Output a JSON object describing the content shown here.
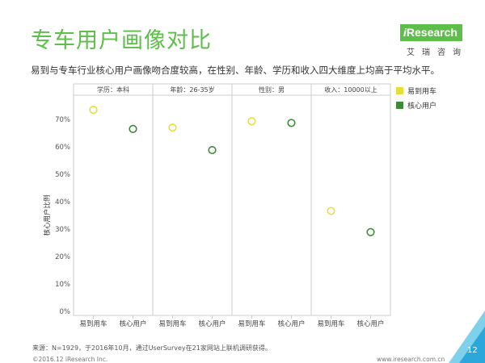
{
  "header": {
    "title": "专车用户画像对比",
    "subtitle": "易到与专车行业核心用户画像吻合度较高，在性别、年龄、学历和收入四大维度上均高于平均水平。"
  },
  "logo": {
    "prefix": "i",
    "name": "Research",
    "cn": "艾瑞咨询",
    "color": "#5dbe4a"
  },
  "chart_data": {
    "type": "scatter",
    "ylabel": "核心用户比例",
    "ylim": [
      0,
      70
    ],
    "yticks": [
      "0%",
      "10%",
      "20%",
      "30%",
      "40%",
      "50%",
      "60%",
      "70%"
    ],
    "ytick_values": [
      0,
      10,
      20,
      30,
      40,
      50,
      60,
      70
    ],
    "panels": [
      {
        "label": "学历：本科",
        "categories": [
          "易到用车",
          "核心用户"
        ],
        "values": [
          73.5,
          66.5
        ]
      },
      {
        "label": "年龄：26-35岁",
        "categories": [
          "易到用车",
          "核心用户"
        ],
        "values": [
          67,
          58.8
        ]
      },
      {
        "label": "性别：男",
        "categories": [
          "易到用车",
          "核心用户"
        ],
        "values": [
          69.3,
          68.7
        ]
      },
      {
        "label": "收入：10000以上",
        "categories": [
          "易到用车",
          "核心用户"
        ],
        "values": [
          36.6,
          28.9
        ]
      }
    ],
    "series": [
      {
        "name": "易到用车",
        "color": "#e6df3a"
      },
      {
        "name": "核心用户",
        "color": "#3f8a3a"
      }
    ],
    "legend_position": "right",
    "grid": false
  },
  "footer": {
    "source": "来源：N=1929，于2016年10月，通过UserSurvey在21家网站上联机调研获得。",
    "copyright": "©2016.12 iResearch Inc.",
    "url": "www.iresearch.com.cn",
    "page": "12"
  },
  "colors": {
    "accent": "#5dbe4a",
    "corner_light": "#7fd0ea",
    "corner_dark": "#2ba7dc"
  }
}
